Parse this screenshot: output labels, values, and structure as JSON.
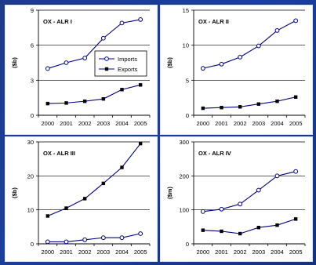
{
  "chart_data": [
    {
      "type": "line",
      "title": "OX - ALR I",
      "ylabel": "($b)",
      "x": [
        "2000",
        "2001",
        "2002",
        "2003",
        "2004",
        "2005"
      ],
      "ylim": [
        0,
        9
      ],
      "yticks": [
        0,
        3,
        6,
        9
      ],
      "legend": "inside-right",
      "series": [
        {
          "name": "Imports",
          "marker": "open-circle",
          "values": [
            4.0,
            4.5,
            4.9,
            6.6,
            7.9,
            8.2
          ]
        },
        {
          "name": "Exports",
          "marker": "filled-square",
          "values": [
            1.0,
            1.05,
            1.2,
            1.4,
            2.2,
            2.6
          ]
        }
      ]
    },
    {
      "type": "line",
      "title": "OX - ALR II",
      "ylabel": "($b)",
      "x": [
        "2000",
        "2001",
        "2002",
        "2003",
        "2004",
        "2005"
      ],
      "ylim": [
        0,
        15
      ],
      "yticks": [
        0,
        5,
        10,
        15
      ],
      "series": [
        {
          "name": "",
          "marker": "open-circle",
          "values": [
            6.7,
            7.3,
            8.3,
            9.9,
            12.1,
            13.5
          ]
        },
        {
          "name": "",
          "marker": "filled-square",
          "values": [
            1.0,
            1.1,
            1.2,
            1.6,
            2.0,
            2.6
          ]
        }
      ]
    },
    {
      "type": "line",
      "title": "OX - ALR III",
      "ylabel": "($b)",
      "x": [
        "2000",
        "2001",
        "2002",
        "2003",
        "2004",
        "2005"
      ],
      "ylim": [
        0,
        30
      ],
      "yticks": [
        0,
        10,
        20,
        30
      ],
      "series": [
        {
          "name": "",
          "marker": "filled-square",
          "values": [
            8.2,
            10.5,
            13.3,
            17.8,
            22.5,
            29.5
          ]
        },
        {
          "name": "",
          "marker": "open-circle",
          "values": [
            0.6,
            0.6,
            1.2,
            1.8,
            1.8,
            3.0
          ]
        }
      ]
    },
    {
      "type": "line",
      "title": "OX - ALR IV",
      "ylabel": "($m)",
      "x": [
        "2000",
        "2001",
        "2002",
        "2003",
        "2004",
        "2005"
      ],
      "ylim": [
        0,
        300
      ],
      "yticks": [
        0,
        100,
        200,
        300
      ],
      "series": [
        {
          "name": "",
          "marker": "open-circle",
          "values": [
            95,
            102,
            117,
            158,
            200,
            213
          ]
        },
        {
          "name": "",
          "marker": "filled-square",
          "values": [
            40,
            37,
            30,
            48,
            55,
            73
          ]
        }
      ]
    }
  ]
}
